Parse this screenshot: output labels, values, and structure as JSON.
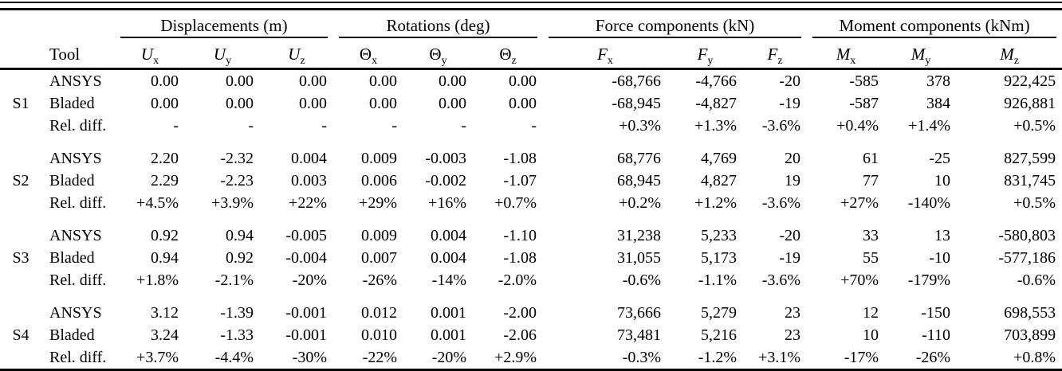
{
  "table": {
    "tool_header": "Tool",
    "groups": [
      {
        "label": "Displacements (m)",
        "columns": [
          {
            "base": "U",
            "sub": "x",
            "italic": true
          },
          {
            "base": "U",
            "sub": "y",
            "italic": true
          },
          {
            "base": "U",
            "sub": "z",
            "italic": true
          }
        ]
      },
      {
        "label": "Rotations (deg)",
        "columns": [
          {
            "base": "Θ",
            "sub": "x",
            "italic": false
          },
          {
            "base": "Θ",
            "sub": "y",
            "italic": false
          },
          {
            "base": "Θ",
            "sub": "z",
            "italic": false
          }
        ]
      },
      {
        "label": "Force components (kN)",
        "columns": [
          {
            "base": "F",
            "sub": "x",
            "italic": true
          },
          {
            "base": "F",
            "sub": "y",
            "italic": true
          },
          {
            "base": "F",
            "sub": "z",
            "italic": true
          }
        ]
      },
      {
        "label": "Moment components (kNm)",
        "columns": [
          {
            "base": "M",
            "sub": "x",
            "italic": true
          },
          {
            "base": "M",
            "sub": "y",
            "italic": true
          },
          {
            "base": "M",
            "sub": "z",
            "italic": true
          }
        ]
      }
    ],
    "sections": [
      {
        "id": "S1",
        "rows": [
          {
            "tool": "ANSYS",
            "values": [
              "0.00",
              "0.00",
              "0.00",
              "0.00",
              "0.00",
              "0.00",
              "-68,766",
              "-4,766",
              "-20",
              "-585",
              "378",
              "922,425"
            ]
          },
          {
            "tool": "Bladed",
            "values": [
              "0.00",
              "0.00",
              "0.00",
              "0.00",
              "0.00",
              "0.00",
              "-68,945",
              "-4,827",
              "-19",
              "-587",
              "384",
              "926,881"
            ]
          },
          {
            "tool": "Rel. diff.",
            "values": [
              "-",
              "-",
              "-",
              "-",
              "-",
              "-",
              "+0.3%",
              "+1.3%",
              "-3.6%",
              "+0.4%",
              "+1.4%",
              "+0.5%"
            ]
          }
        ]
      },
      {
        "id": "S2",
        "rows": [
          {
            "tool": "ANSYS",
            "values": [
              "2.20",
              "-2.32",
              "0.004",
              "0.009",
              "-0.003",
              "-1.08",
              "68,776",
              "4,769",
              "20",
              "61",
              "-25",
              "827,599"
            ]
          },
          {
            "tool": "Bladed",
            "values": [
              "2.29",
              "-2.23",
              "0.003",
              "0.006",
              "-0.002",
              "-1.07",
              "68,945",
              "4,827",
              "19",
              "77",
              "10",
              "831,745"
            ]
          },
          {
            "tool": "Rel. diff.",
            "values": [
              "+4.5%",
              "+3.9%",
              "+22%",
              "+29%",
              "+16%",
              "+0.7%",
              "+0.2%",
              "+1.2%",
              "-3.6%",
              "+27%",
              "-140%",
              "+0.5%"
            ]
          }
        ]
      },
      {
        "id": "S3",
        "rows": [
          {
            "tool": "ANSYS",
            "values": [
              "0.92",
              "0.94",
              "-0.005",
              "0.009",
              "0.004",
              "-1.10",
              "31,238",
              "5,233",
              "-20",
              "33",
              "13",
              "-580,803"
            ]
          },
          {
            "tool": "Bladed",
            "values": [
              "0.94",
              "0.92",
              "-0.004",
              "0.007",
              "0.004",
              "-1.08",
              "31,055",
              "5,173",
              "-19",
              "55",
              "-10",
              "-577,186"
            ]
          },
          {
            "tool": "Rel. diff.",
            "values": [
              "+1.8%",
              "-2.1%",
              "-20%",
              "-26%",
              "-14%",
              "-2.0%",
              "-0.6%",
              "-1.1%",
              "-3.6%",
              "+70%",
              "-179%",
              "-0.6%"
            ]
          }
        ]
      },
      {
        "id": "S4",
        "rows": [
          {
            "tool": "ANSYS",
            "values": [
              "3.12",
              "-1.39",
              "-0.001",
              "0.012",
              "0.001",
              "-2.00",
              "73,666",
              "5,279",
              "23",
              "12",
              "-150",
              "698,553"
            ]
          },
          {
            "tool": "Bladed",
            "values": [
              "3.24",
              "-1.33",
              "-0.001",
              "0.010",
              "0.001",
              "-2.06",
              "73,481",
              "5,216",
              "23",
              "10",
              "-110",
              "703,899"
            ]
          },
          {
            "tool": "Rel. diff.",
            "values": [
              "+3.7%",
              "-4.4%",
              "-30%",
              "-22%",
              "-20%",
              "+2.9%",
              "-0.3%",
              "-1.2%",
              "+3.1%",
              "-17%",
              "-26%",
              "+0.8%"
            ]
          }
        ]
      }
    ]
  }
}
